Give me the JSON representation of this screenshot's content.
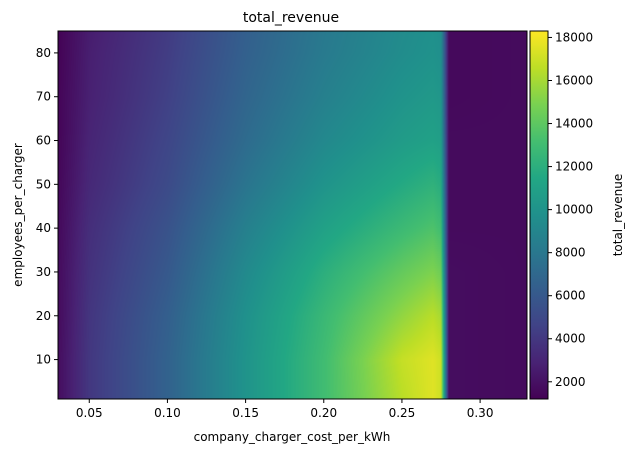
{
  "chart_data": {
    "type": "heatmap",
    "title": "total_revenue",
    "xlabel": "company_charger_cost_per_kWh",
    "ylabel": "employees_per_charger",
    "colorbar_label": "total_revenue",
    "colormap": "viridis",
    "xlim": [
      0.03,
      0.33
    ],
    "ylim": [
      1,
      85
    ],
    "clim": [
      1200,
      18300
    ],
    "x_ticks": [
      0.05,
      0.1,
      0.15,
      0.2,
      0.25,
      0.3
    ],
    "x_tick_labels": [
      "0.05",
      "0.10",
      "0.15",
      "0.20",
      "0.25",
      "0.30"
    ],
    "y_ticks": [
      10,
      20,
      30,
      40,
      50,
      60,
      70,
      80
    ],
    "y_tick_labels": [
      "10",
      "20",
      "30",
      "40",
      "50",
      "60",
      "70",
      "80"
    ],
    "colorbar_ticks": [
      2000,
      4000,
      6000,
      8000,
      10000,
      12000,
      14000,
      16000,
      18000
    ],
    "colorbar_tick_labels": [
      "2000",
      "4000",
      "6000",
      "8000",
      "10000",
      "12000",
      "14000",
      "16000",
      "18000"
    ],
    "x": [
      0.03,
      0.05,
      0.1,
      0.15,
      0.2,
      0.25,
      0.27,
      0.275,
      0.28,
      0.33
    ],
    "y": [
      1,
      10,
      20,
      30,
      40,
      50,
      60,
      70,
      80,
      85
    ],
    "z": [
      [
        1800,
        4000,
        6600,
        10000,
        13000,
        16500,
        17500,
        17000,
        1800,
        1700
      ],
      [
        1800,
        4000,
        6600,
        10000,
        13000,
        16800,
        17500,
        17000,
        1800,
        1700
      ],
      [
        1700,
        3900,
        6400,
        9800,
        12700,
        15500,
        16500,
        16000,
        1800,
        1700
      ],
      [
        1700,
        3700,
        6000,
        9300,
        12000,
        14200,
        15000,
        14500,
        1800,
        1700
      ],
      [
        1600,
        3500,
        5600,
        8600,
        11000,
        12800,
        13500,
        13000,
        1700,
        1700
      ],
      [
        1500,
        3200,
        5100,
        7800,
        10000,
        11600,
        12200,
        11800,
        1700,
        1700
      ],
      [
        1400,
        3000,
        4800,
        7200,
        9200,
        10600,
        11000,
        10800,
        1700,
        1700
      ],
      [
        1400,
        2800,
        4500,
        6800,
        8600,
        10000,
        10400,
        10200,
        1600,
        1700
      ],
      [
        1300,
        2700,
        4300,
        6500,
        8200,
        9500,
        9900,
        9700,
        1600,
        1700
      ],
      [
        1300,
        2600,
        4200,
        6400,
        8100,
        9400,
        9800,
        9600,
        1600,
        1700
      ]
    ]
  }
}
